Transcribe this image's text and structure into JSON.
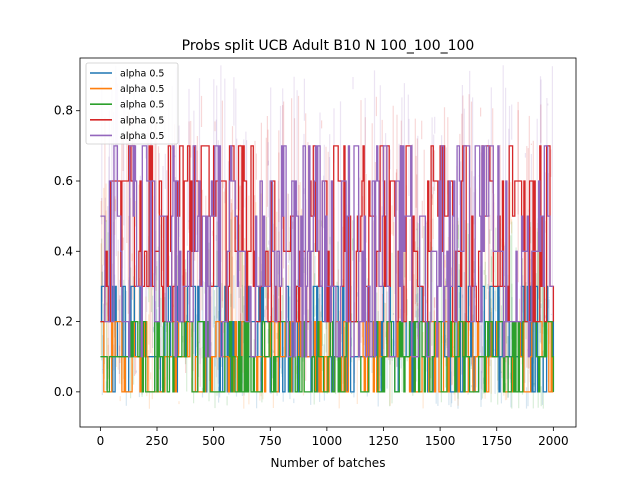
{
  "chart_data": {
    "type": "line",
    "title": "Probs split UCB Adult B10 N 100_100_100",
    "xlabel": "Number of batches",
    "ylabel": "",
    "xlim": [
      -90,
      2100
    ],
    "ylim": [
      -0.1,
      0.95
    ],
    "xticks": [
      0,
      250,
      500,
      750,
      1000,
      1250,
      1500,
      1750,
      2000
    ],
    "xtick_labels": [
      "0",
      "250",
      "500",
      "750",
      "1000",
      "1250",
      "1500",
      "1750",
      "2000"
    ],
    "yticks": [
      0.0,
      0.2,
      0.4,
      0.6,
      0.8
    ],
    "ytick_labels": [
      "0.0",
      "0.2",
      "0.4",
      "0.6",
      "0.8"
    ],
    "grid": false,
    "legend_position": "top-left",
    "x_range": [
      0,
      2000
    ],
    "series": [
      {
        "name": "alpha 0.5",
        "color": "#1f77b4",
        "levels": [
          0.0,
          0.1,
          0.2,
          0.3
        ],
        "shaded_range": [
          -0.05,
          0.35
        ]
      },
      {
        "name": "alpha 0.5",
        "color": "#ff7f0e",
        "levels": [
          0.0,
          0.1,
          0.2
        ],
        "shaded_range": [
          -0.05,
          0.6
        ]
      },
      {
        "name": "alpha 0.5",
        "color": "#2ca02c",
        "levels": [
          0.0,
          0.1,
          0.2
        ],
        "shaded_range": [
          -0.05,
          0.5
        ]
      },
      {
        "name": "alpha 0.5",
        "color": "#d62728",
        "levels": [
          0.2,
          0.3,
          0.4,
          0.5,
          0.6,
          0.7
        ],
        "shaded_range": [
          0.0,
          0.85
        ]
      },
      {
        "name": "alpha 0.5",
        "color": "#9467bd",
        "levels": [
          0.1,
          0.2,
          0.3,
          0.4,
          0.5,
          0.6,
          0.7
        ],
        "shaded_range": [
          0.0,
          0.93
        ]
      }
    ]
  }
}
